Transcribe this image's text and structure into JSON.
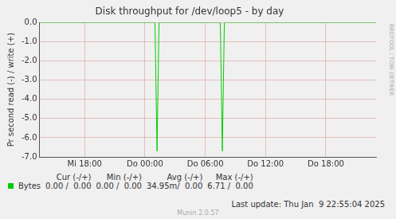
{
  "chart_data": {
    "type": "line",
    "title": "Disk throughput for /dev/loop5 - by day",
    "y_label": "Pr second read (-) / write (+)",
    "x": [
      13.5,
      25.0,
      25.2,
      25.4,
      31.5,
      31.7,
      31.9,
      47.0
    ],
    "series": [
      {
        "name": "Bytes",
        "color": "#00cc00",
        "values": [
          0,
          0,
          -6.7,
          0,
          0,
          -6.7,
          0,
          0
        ]
      }
    ],
    "xlim": [
      13.5,
      47.0
    ],
    "xticks": [
      {
        "value": 18,
        "label": "Mi 18:00"
      },
      {
        "value": 24,
        "label": "Do 00:00"
      },
      {
        "value": 30,
        "label": "Do 06:00"
      },
      {
        "value": 36,
        "label": "Do 12:00"
      },
      {
        "value": 42,
        "label": "Do 18:00"
      }
    ],
    "ylim": [
      -7,
      0
    ],
    "yticks": [
      {
        "value": -7,
        "label": "-7.0"
      },
      {
        "value": -6,
        "label": "-6.0"
      },
      {
        "value": -5,
        "label": "-5.0"
      },
      {
        "value": -4,
        "label": "-4.0"
      },
      {
        "value": -3,
        "label": "-3.0"
      },
      {
        "value": -2,
        "label": "-2.0"
      },
      {
        "value": -1,
        "label": "-1.0"
      },
      {
        "value": 0,
        "label": "0.0"
      }
    ],
    "grid": true,
    "legend_table": {
      "headers": [
        "Cur (-/+)",
        "Min (-/+)",
        "Avg (-/+)",
        "Max (-/+)"
      ],
      "cells": [
        "0.00 /  0.00",
        "0.00 /  0.00",
        "34.95m/  0.00",
        "6.71 /  0.00"
      ]
    },
    "last_update": "Last update: Thu Jan  9 22:55:04 2025",
    "footer": "Munin 2.0.57",
    "watermark": "RRDTOOL / TOBI OETIKER"
  }
}
